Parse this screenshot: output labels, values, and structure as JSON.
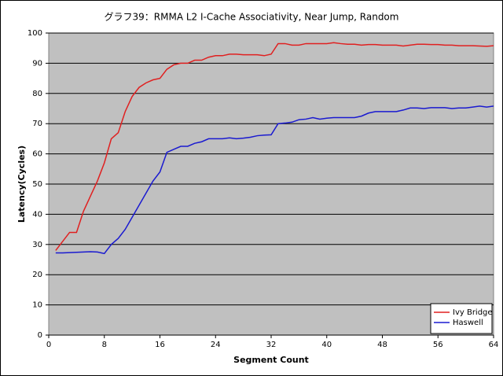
{
  "chart_data": {
    "type": "line",
    "title": "グラフ39：RMMA L2 I-Cache Associativity, Near Jump, Random",
    "x_label": "Segment Count",
    "y_label": "Latency(Cycles)",
    "x": [
      1,
      2,
      3,
      4,
      5,
      6,
      7,
      8,
      9,
      10,
      11,
      12,
      13,
      14,
      15,
      16,
      17,
      18,
      19,
      20,
      21,
      22,
      23,
      24,
      25,
      26,
      27,
      28,
      29,
      30,
      31,
      32,
      33,
      34,
      35,
      36,
      37,
      38,
      39,
      40,
      41,
      42,
      43,
      44,
      45,
      46,
      47,
      48,
      49,
      50,
      51,
      52,
      53,
      54,
      55,
      56,
      57,
      58,
      59,
      60,
      61,
      62,
      63,
      64
    ],
    "series": [
      {
        "name": "Ivy Bridge",
        "color": "#e02020",
        "values": [
          28,
          31,
          34,
          34,
          41,
          46,
          51,
          57,
          65,
          67,
          74,
          79,
          82,
          83.5,
          84.5,
          85,
          88,
          89.5,
          90,
          90,
          91,
          91,
          92,
          92.5,
          92.5,
          93,
          93,
          92.8,
          92.8,
          92.8,
          92.5,
          93,
          96.5,
          96.5,
          96,
          96,
          96.5,
          96.5,
          96.5,
          96.5,
          96.8,
          96.5,
          96.3,
          96.3,
          96,
          96.2,
          96.2,
          96,
          96,
          96,
          95.7,
          96,
          96.3,
          96.3,
          96.2,
          96.2,
          96,
          96,
          95.8,
          95.8,
          95.8,
          95.7,
          95.6,
          95.8
        ]
      },
      {
        "name": "Haswell",
        "color": "#1a1ad0",
        "values": [
          27.2,
          27.2,
          27.3,
          27.4,
          27.5,
          27.6,
          27.5,
          27,
          30,
          32,
          35,
          39,
          43,
          47,
          51,
          54,
          60.5,
          61.5,
          62.5,
          62.5,
          63.5,
          64,
          65,
          65,
          65,
          65.3,
          65,
          65.2,
          65.5,
          66,
          66.2,
          66.3,
          70,
          70.2,
          70.5,
          71.3,
          71.5,
          72,
          71.5,
          71.8,
          72,
          72,
          72,
          72,
          72.5,
          73.5,
          74,
          74,
          74,
          74,
          74.5,
          75.2,
          75.2,
          75,
          75.3,
          75.3,
          75.3,
          75,
          75.2,
          75.2,
          75.5,
          75.8,
          75.5,
          75.8
        ]
      }
    ],
    "xlim": [
      0,
      64
    ],
    "xticks": [
      0,
      8,
      16,
      24,
      32,
      40,
      48,
      56,
      64
    ],
    "ylim": [
      0,
      100
    ],
    "yticks": [
      0,
      10,
      20,
      30,
      40,
      50,
      60,
      70,
      80,
      90,
      100
    ],
    "grid": true,
    "legend": "lower-right"
  }
}
